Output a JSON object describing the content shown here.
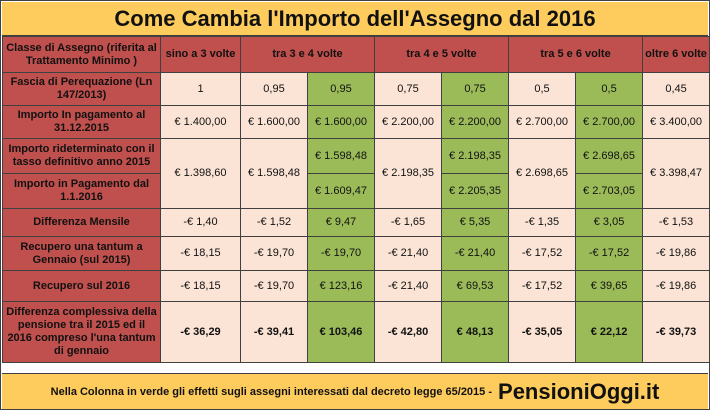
{
  "title": "Come Cambia l'Importo dell'Assegno dal 2016",
  "header": {
    "row_label": "Classe di Assegno (riferita al Trattamento Minimo )",
    "c1": "sino a 3 volte",
    "c2": "tra 3 e 4 volte",
    "c3": "tra 4 e 5 volte",
    "c4": "tra 5 e 6 volte",
    "c5": "oltre 6 volte"
  },
  "rows": {
    "fascia": {
      "label": "Fascia di Perequazione (Ln 147/2013)",
      "v": [
        "1",
        "0,95",
        "0,95",
        "0,75",
        "0,75",
        "0,5",
        "0,5",
        "0,45"
      ]
    },
    "importo2015": {
      "label": "Importo In pagamento al 31.12.2015",
      "v": [
        "€ 1.400,00",
        "€ 1.600,00",
        "€ 1.600,00",
        "€ 2.200,00",
        "€ 2.200,00",
        "€ 2.700,00",
        "€ 2.700,00",
        "€ 3.400,00"
      ]
    },
    "rideterminato": {
      "label": "Importo rideterminato con il tasso definitivo anno 2015",
      "v": [
        "€ 1.398,60",
        "€ 1.598,48",
        "€ 1.598,48",
        "€ 2.198,35",
        "€ 2.198,35",
        "€ 2.698,65",
        "€ 2.698,65",
        "€ 3.398,47"
      ]
    },
    "importo2016": {
      "label": "Importo in Pagamento dal 1.1.2016",
      "v": [
        "€ 1.609,47",
        "€ 2.205,35",
        "€ 2.703,05"
      ]
    },
    "differenza": {
      "label": "Differenza Mensile",
      "v": [
        "-€ 1,40",
        "-€ 1,52",
        "€ 9,47",
        "-€ 1,65",
        "€ 5,35",
        "-€ 1,35",
        "€ 3,05",
        "-€ 1,53"
      ]
    },
    "recupero_tantum": {
      "label": "Recupero una tantum a Gennaio (sul 2015)",
      "v": [
        "-€ 18,15",
        "-€ 19,70",
        "-€ 19,70",
        "-€ 21,40",
        "-€ 21,40",
        "-€ 17,52",
        "-€ 17,52",
        "-€ 19,86"
      ]
    },
    "recupero2016": {
      "label": "Recupero sul 2016",
      "v": [
        "-€ 18,15",
        "-€ 19,70",
        "€ 123,16",
        "-€ 21,40",
        "€ 69,53",
        "-€ 17,52",
        "€ 39,65",
        "-€ 19,86"
      ]
    },
    "complessiva": {
      "label": "Differenza complessiva della pensione tra il 2015 ed il 2016 compreso l'una tantum di gennaio",
      "v": [
        "-€ 36,29",
        "-€ 39,41",
        "€ 103,46",
        "-€ 42,80",
        "€ 48,13",
        "-€ 35,05",
        "€ 22,12",
        "-€ 39,73"
      ]
    }
  },
  "footer": {
    "note": "Nella Colonna in verde gli effetti sugli assegni interessati dal decreto legge 65/2015 -",
    "brand": "PensioniOggi.it"
  },
  "colors": {
    "header_red": "#c0504d",
    "title_yellow": "#fecc5c",
    "cell_pink": "#fbe4d5",
    "highlight_green": "#9bbb59"
  }
}
